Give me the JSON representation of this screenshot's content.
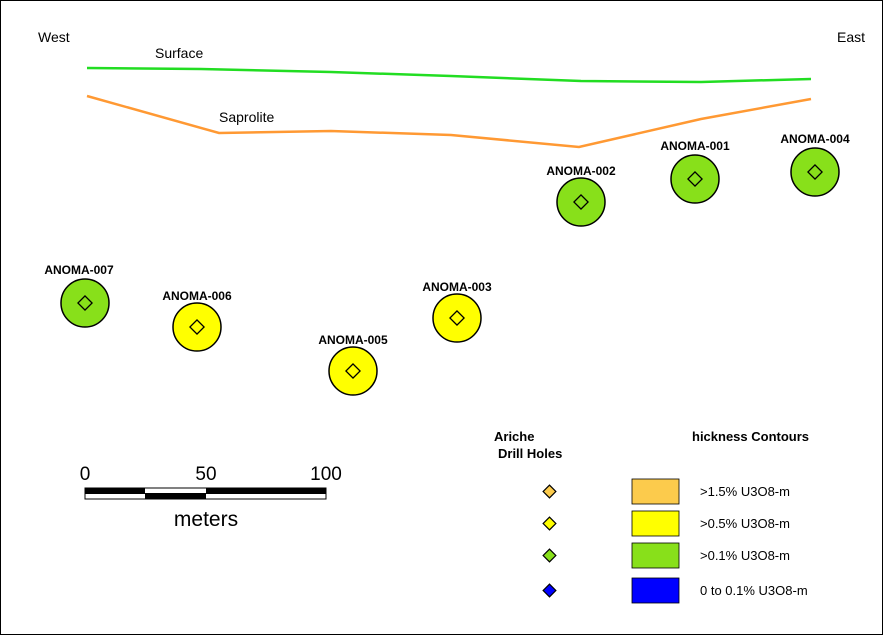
{
  "section": {
    "west_label": "West",
    "east_label": "East",
    "surface_label": "Surface",
    "saprolite_label": "Saprolite",
    "colors": {
      "surface_line": "#22dd22",
      "saprolite_line": "#ff9933",
      "outline": "#000000"
    }
  },
  "drill_holes": [
    {
      "id": "ANOMA-001",
      "label": "ANOMA-001",
      "grade_class": ">0.1% U3O8-m",
      "fill": "#88e01a"
    },
    {
      "id": "ANOMA-002",
      "label": "ANOMA-002",
      "grade_class": ">0.1% U3O8-m",
      "fill": "#88e01a"
    },
    {
      "id": "ANOMA-003",
      "label": "ANOMA-003",
      "grade_class": ">0.5% U3O8-m",
      "fill": "#ffff00"
    },
    {
      "id": "ANOMA-004",
      "label": "ANOMA-004",
      "grade_class": ">0.1% U3O8-m",
      "fill": "#88e01a"
    },
    {
      "id": "ANOMA-005",
      "label": "ANOMA-005",
      "grade_class": ">0.5% U3O8-m",
      "fill": "#ffff00"
    },
    {
      "id": "ANOMA-006",
      "label": "ANOMA-006",
      "grade_class": ">0.5% U3O8-m",
      "fill": "#ffff00"
    },
    {
      "id": "ANOMA-007",
      "label": "ANOMA-007",
      "grade_class": ">0.1% U3O8-m",
      "fill": "#88e01a"
    }
  ],
  "scale_bar": {
    "ticks": [
      "0",
      "50",
      "100"
    ],
    "unit": "meters"
  },
  "legend": {
    "holes_heading_line1": "Ariche",
    "holes_heading_line2": "Drill Holes",
    "contours_heading": "hickness Contours",
    "items": [
      {
        "label": ">1.5% U3O8-m",
        "color": "#fccb4c"
      },
      {
        "label": ">0.5% U3O8-m",
        "color": "#ffff00"
      },
      {
        "label": ">0.1% U3O8-m",
        "color": "#88e01a"
      },
      {
        "label": "0 to 0.1% U3O8-m",
        "color": "#0000ff"
      }
    ]
  }
}
